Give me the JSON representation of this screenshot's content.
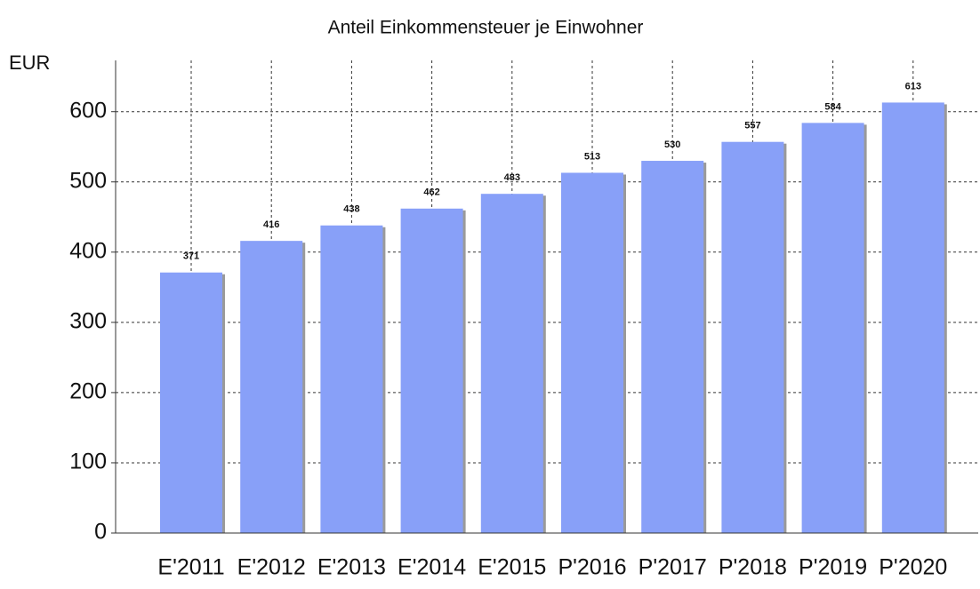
{
  "chart_data": {
    "type": "bar",
    "title": "Anteil Einkommensteuer je Einwohner",
    "y_label": "EUR",
    "categories": [
      "E'2011",
      "E'2012",
      "E'2013",
      "E'2014",
      "E'2015",
      "P'2016",
      "P'2017",
      "P'2018",
      "P'2019",
      "P'2020"
    ],
    "values": [
      371,
      416,
      438,
      462,
      483,
      513,
      530,
      557,
      584,
      613
    ],
    "color": "#88a0f8",
    "ylim": [
      0,
      673
    ],
    "yticks": [
      0,
      100,
      200,
      300,
      400,
      500,
      600
    ],
    "grid": true
  }
}
